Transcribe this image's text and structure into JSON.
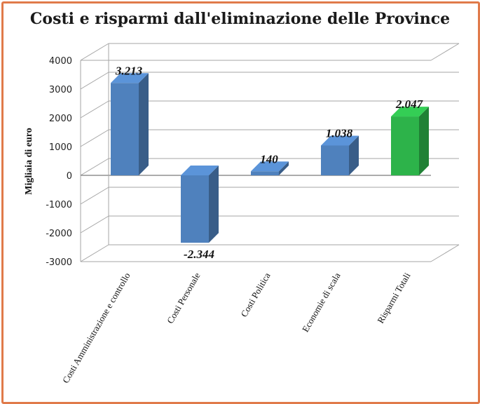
{
  "chart_data": {
    "type": "bar",
    "title": "Costi e risparmi dall'eliminazione delle Province",
    "ylabel": "Migliaia di euro",
    "xlabel": "",
    "ylim": [
      -3000,
      4000
    ],
    "yticks": [
      4000,
      3000,
      2000,
      1000,
      0,
      -1000,
      -2000,
      -3000
    ],
    "categories": [
      "Costi Amministrazione e controllo",
      "Costi Personale",
      "Costi Politica",
      "Economie di scala",
      "Risparmi Totali"
    ],
    "values": [
      3213,
      -2344,
      140,
      1038,
      2047
    ],
    "data_labels": [
      "3.213",
      "-2.344",
      "140",
      "1.038",
      "2.047"
    ],
    "bar_colors": [
      "#4f81bd",
      "#4f81bd",
      "#4f81bd",
      "#4f81bd",
      "#2db34a"
    ],
    "grid": true,
    "style": "3d-column"
  }
}
